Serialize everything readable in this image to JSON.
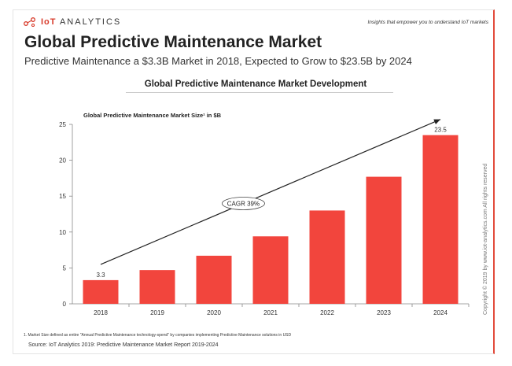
{
  "header": {
    "brand_prefix": "IoT",
    "brand_suffix": "ANALYTICS",
    "tagline": "Insights that empower you to understand IoT markets"
  },
  "title": "Global Predictive Maintenance Market",
  "subtitle": "Predictive Maintenance a $3.3B Market in 2018, Expected to Grow to $23.5B by 2024",
  "chart_heading": "Global Predictive Maintenance Market Development",
  "footnote": "1. Market Size defined as entire \"Annual Predictive Maintenance technology-spend\" by companies implementing Predictive Maintenance solutions in USD",
  "source": "Source: IoT Analytics 2019: Predictive Maintenance Market Report 2019-2024",
  "copyright": "Copyright © 2019 by www.iot-analytics.com All rights reserved",
  "colors": {
    "bar": "#f2453d",
    "accent": "#d83b2b"
  },
  "chart_data": {
    "type": "bar",
    "title": "Global Predictive Maintenance Market Size¹ in $B",
    "categories": [
      "2018",
      "2019",
      "2020",
      "2021",
      "2022",
      "2023",
      "2024"
    ],
    "values": [
      3.3,
      4.7,
      6.7,
      9.4,
      13.0,
      17.7,
      23.5
    ],
    "data_labels": {
      "2018": "3.3",
      "2024": "23.5"
    },
    "yticks": [
      0,
      5,
      10,
      15,
      20,
      25
    ],
    "ylim": [
      0,
      25
    ],
    "grid": false,
    "annotation": "CAGR 39%"
  }
}
